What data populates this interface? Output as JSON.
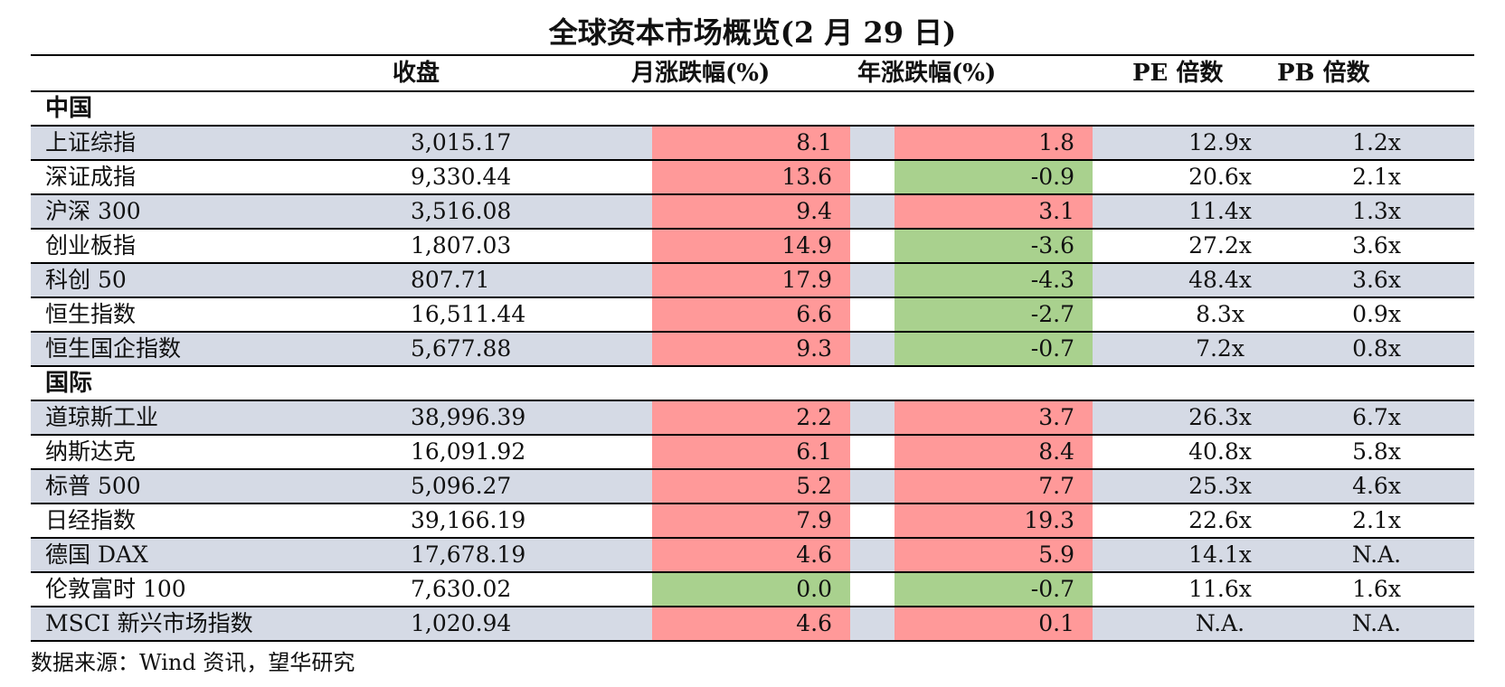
{
  "title": "全球资本市场概览(2 月 29 日)",
  "headers": {
    "close": "收盘",
    "mom": "月涨跌幅(%)",
    "yoy": "年涨跌幅(%)",
    "pe": "PE 倍数",
    "pb": "PB 倍数"
  },
  "colors": {
    "positive": "#ff9999",
    "negative": "#a9d18e",
    "shade": "#d5dae5"
  },
  "sections": [
    {
      "label": "中国",
      "rows": [
        {
          "name": "上证综指",
          "close": "3,015.17",
          "mom": "8.1",
          "yoy": "1.8",
          "pe": "12.9x",
          "pb": "1.2x"
        },
        {
          "name": "深证成指",
          "close": "9,330.44",
          "mom": "13.6",
          "yoy": "-0.9",
          "pe": "20.6x",
          "pb": "2.1x"
        },
        {
          "name": "沪深 300",
          "close": "3,516.08",
          "mom": "9.4",
          "yoy": "3.1",
          "pe": "11.4x",
          "pb": "1.3x"
        },
        {
          "name": "创业板指",
          "close": "1,807.03",
          "mom": "14.9",
          "yoy": "-3.6",
          "pe": "27.2x",
          "pb": "3.6x"
        },
        {
          "name": "科创 50",
          "close": "807.71",
          "mom": "17.9",
          "yoy": "-4.3",
          "pe": "48.4x",
          "pb": "3.6x"
        },
        {
          "name": "恒生指数",
          "close": "16,511.44",
          "mom": "6.6",
          "yoy": "-2.7",
          "pe": "8.3x",
          "pb": "0.9x"
        },
        {
          "name": "恒生国企指数",
          "close": "5,677.88",
          "mom": "9.3",
          "yoy": "-0.7",
          "pe": "7.2x",
          "pb": "0.8x"
        }
      ]
    },
    {
      "label": "国际",
      "rows": [
        {
          "name": "道琼斯工业",
          "close": "38,996.39",
          "mom": "2.2",
          "yoy": "3.7",
          "pe": "26.3x",
          "pb": "6.7x"
        },
        {
          "name": "纳斯达克",
          "close": "16,091.92",
          "mom": "6.1",
          "yoy": "8.4",
          "pe": "40.8x",
          "pb": "5.8x"
        },
        {
          "name": "标普 500",
          "close": "5,096.27",
          "mom": "5.2",
          "yoy": "7.7",
          "pe": "25.3x",
          "pb": "4.6x"
        },
        {
          "name": "日经指数",
          "close": "39,166.19",
          "mom": "7.9",
          "yoy": "19.3",
          "pe": "22.6x",
          "pb": "2.1x"
        },
        {
          "name": "德国 DAX",
          "close": "17,678.19",
          "mom": "4.6",
          "yoy": "5.9",
          "pe": "14.1x",
          "pb": "N.A."
        },
        {
          "name": "伦敦富时 100",
          "close": "7,630.02",
          "mom": "0.0",
          "yoy": "-0.7",
          "pe": "11.6x",
          "pb": "1.6x"
        },
        {
          "name": "MSCI 新兴市场指数",
          "close": "1,020.94",
          "mom": "4.6",
          "yoy": "0.1",
          "pe": "N.A.",
          "pb": "N.A."
        }
      ]
    }
  ],
  "source": "数据来源：Wind 资讯，望华研究"
}
